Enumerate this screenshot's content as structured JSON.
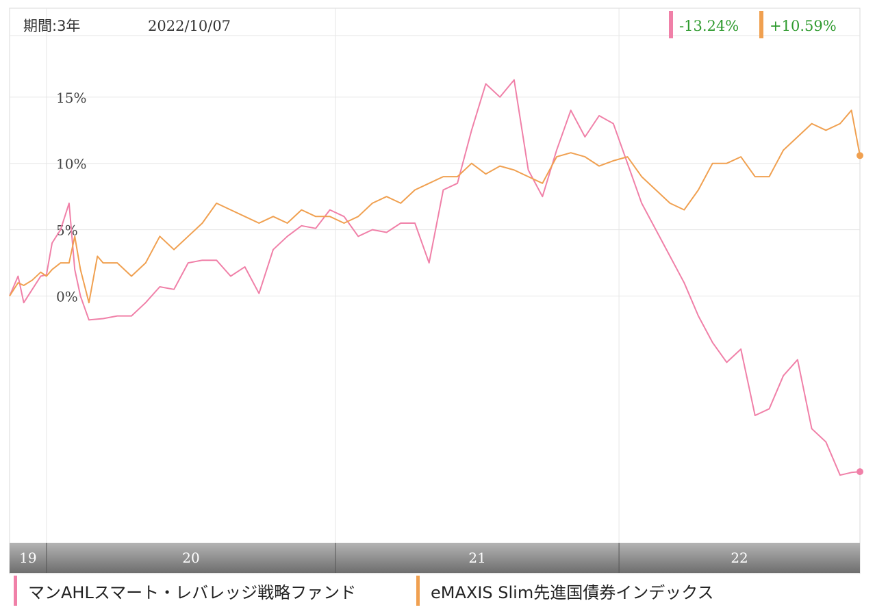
{
  "chart_data": {
    "type": "line",
    "period_label": "期間:3年",
    "date_label": "2022/10/07",
    "y_ticks": [
      {
        "value": 0,
        "label": "0%"
      },
      {
        "value": 5,
        "label": "5%"
      },
      {
        "value": 10,
        "label": "10%"
      },
      {
        "value": 15,
        "label": "15%"
      }
    ],
    "ylim": [
      -18.6,
      21.7
    ],
    "xlim": [
      2019.77,
      2022.77
    ],
    "x_axis": {
      "labels": [
        {
          "label": "19",
          "start": 2019.77,
          "end": 2019.9
        },
        {
          "label": "20",
          "start": 2019.9,
          "end": 2020.92
        },
        {
          "label": "21",
          "start": 2020.92,
          "end": 2021.92
        },
        {
          "label": "22",
          "start": 2021.92,
          "end": 2022.77
        }
      ]
    },
    "grid": true,
    "series": [
      {
        "name": "マンAHLスマート・レバレッジ戦略ファンド",
        "color": "#f080a8",
        "final_label": "-13.24%",
        "x": [
          2019.77,
          2019.8,
          2019.82,
          2019.85,
          2019.88,
          2019.9,
          2019.92,
          2019.95,
          2019.98,
          2020.0,
          2020.02,
          2020.05,
          2020.1,
          2020.15,
          2020.2,
          2020.25,
          2020.3,
          2020.35,
          2020.4,
          2020.45,
          2020.5,
          2020.55,
          2020.6,
          2020.65,
          2020.7,
          2020.75,
          2020.8,
          2020.85,
          2020.9,
          2020.95,
          2021.0,
          2021.05,
          2021.1,
          2021.15,
          2021.2,
          2021.25,
          2021.3,
          2021.35,
          2021.4,
          2021.45,
          2021.5,
          2021.55,
          2021.6,
          2021.65,
          2021.7,
          2021.75,
          2021.8,
          2021.85,
          2021.9,
          2021.95,
          2022.0,
          2022.05,
          2022.1,
          2022.15,
          2022.2,
          2022.25,
          2022.3,
          2022.35,
          2022.4,
          2022.45,
          2022.5,
          2022.55,
          2022.6,
          2022.65,
          2022.7,
          2022.74,
          2022.77
        ],
        "y": [
          0,
          1.5,
          -0.5,
          0.5,
          1.5,
          1.6,
          4,
          5,
          7,
          2,
          0,
          -1.8,
          -1.7,
          -1.5,
          -1.5,
          -0.5,
          0.7,
          0.5,
          2.5,
          2.7,
          2.7,
          1.5,
          2.2,
          0.2,
          3.5,
          4.5,
          5.3,
          5.1,
          6.5,
          6,
          4.5,
          5,
          4.8,
          5.5,
          5.5,
          2.5,
          8,
          8.5,
          12.5,
          16,
          15,
          16.3,
          9.5,
          7.5,
          11,
          14,
          12,
          13.6,
          13,
          10,
          7,
          5,
          3,
          1,
          -1.5,
          -3.5,
          -5,
          -4,
          -9,
          -8.5,
          -6,
          -4.8,
          -10,
          -11,
          -13.5,
          -13.3,
          -13.24
        ]
      },
      {
        "name": "eMAXIS Slim先進国債券インデックス",
        "color": "#f0a050",
        "final_label": "+10.59%",
        "x": [
          2019.77,
          2019.8,
          2019.82,
          2019.85,
          2019.88,
          2019.9,
          2019.92,
          2019.95,
          2019.98,
          2020.0,
          2020.02,
          2020.05,
          2020.08,
          2020.1,
          2020.15,
          2020.2,
          2020.25,
          2020.3,
          2020.35,
          2020.4,
          2020.45,
          2020.5,
          2020.55,
          2020.6,
          2020.65,
          2020.7,
          2020.75,
          2020.8,
          2020.85,
          2020.9,
          2020.95,
          2021.0,
          2021.05,
          2021.1,
          2021.15,
          2021.2,
          2021.25,
          2021.3,
          2021.35,
          2021.4,
          2021.45,
          2021.5,
          2021.55,
          2021.6,
          2021.65,
          2021.7,
          2021.75,
          2021.8,
          2021.85,
          2021.9,
          2021.95,
          2022.0,
          2022.05,
          2022.1,
          2022.15,
          2022.2,
          2022.25,
          2022.3,
          2022.35,
          2022.4,
          2022.45,
          2022.5,
          2022.55,
          2022.6,
          2022.65,
          2022.7,
          2022.74,
          2022.77
        ],
        "y": [
          0,
          1,
          0.8,
          1.2,
          1.8,
          1.5,
          2,
          2.5,
          2.5,
          4.5,
          2,
          -0.5,
          3,
          2.5,
          2.5,
          1.5,
          2.5,
          4.5,
          3.5,
          4.5,
          5.5,
          7,
          6.5,
          6,
          5.5,
          6,
          5.5,
          6.5,
          6,
          6,
          5.5,
          6,
          7,
          7.5,
          7,
          8,
          8.5,
          9,
          9,
          10,
          9.2,
          9.8,
          9.5,
          9,
          8.5,
          10.5,
          10.8,
          10.5,
          9.8,
          10.2,
          10.5,
          9,
          8,
          7,
          6.5,
          8,
          10,
          10,
          10.5,
          9,
          9,
          11,
          12,
          13,
          12.5,
          13,
          14,
          10.59
        ]
      }
    ]
  }
}
